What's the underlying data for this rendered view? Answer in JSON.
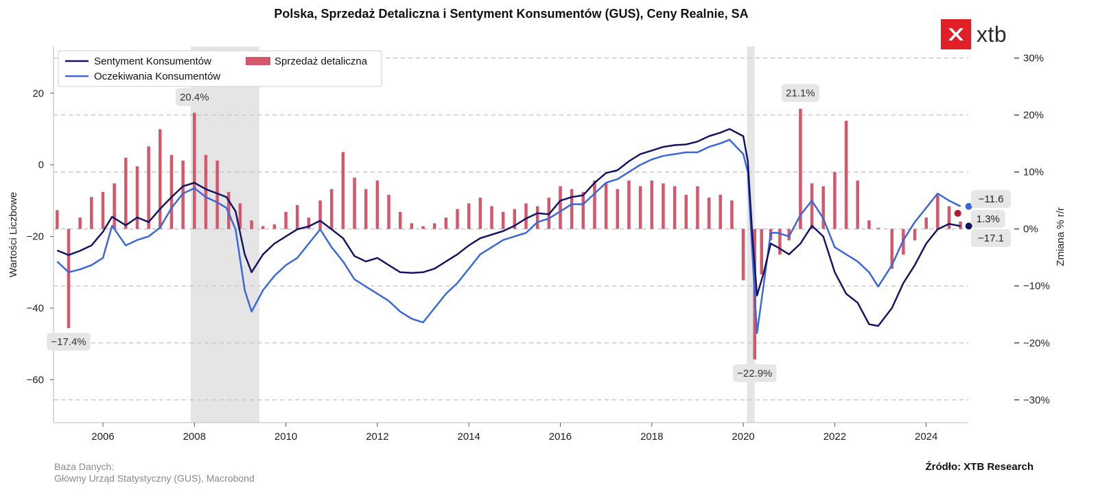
{
  "title": "Polska, Sprzedaż Detaliczna i Sentyment Konsumentów (GUS), Ceny Realnie, SA",
  "logo": {
    "text": "xtb",
    "icon": "xtb-x-icon",
    "color": "#e11f26"
  },
  "footer": {
    "db_label": "Baza Danych:",
    "db_value": "Główny Urząd Statystyczny (GUS), Macrobond",
    "source": "Źródło: XTB Research"
  },
  "chart_data": {
    "type": "line",
    "x_range": [
      2004.92,
      2024.92
    ],
    "x_ticks": [
      "2006",
      "2008",
      "2010",
      "2012",
      "2014",
      "2016",
      "2018",
      "2020",
      "2022",
      "2024"
    ],
    "left_axis": {
      "label": "Wartości Liczbowe",
      "range": [
        -72,
        33
      ],
      "ticks": [
        -60,
        -40,
        -20,
        0,
        20
      ]
    },
    "right_axis": {
      "label": "Zmiana % r/r",
      "range": [
        -34,
        32
      ],
      "ticks": [
        -30,
        -20,
        -10,
        0,
        10,
        20,
        30
      ],
      "tick_format": "%"
    },
    "right_gridlines": [
      30,
      20,
      10,
      0,
      -10,
      -20,
      -30
    ],
    "shaded_periods": [
      [
        2007.92,
        2009.42
      ],
      [
        2020.08,
        2020.25
      ]
    ],
    "legend": {
      "position": "top-left",
      "items": [
        {
          "name": "Sentyment Konsumentów",
          "type": "line",
          "color": "#141466"
        },
        {
          "name": "Oczekiwania Konsumentów",
          "type": "line",
          "color": "#3a66de"
        },
        {
          "name": "Sprzedaż detaliczna",
          "type": "bar",
          "color": "#d5576c"
        }
      ]
    },
    "series": [
      {
        "name": "Sentyment Konsumentów",
        "axis": "left",
        "color": "#141466",
        "points": [
          [
            2005.0,
            -23.9
          ],
          [
            2005.25,
            -25.2
          ],
          [
            2005.5,
            -24.0
          ],
          [
            2005.75,
            -22.5
          ],
          [
            2006.0,
            -18.7
          ],
          [
            2006.2,
            -14.5
          ],
          [
            2006.5,
            -16.9
          ],
          [
            2006.75,
            -14.7
          ],
          [
            2007.0,
            -16.0
          ],
          [
            2007.25,
            -12.3
          ],
          [
            2007.5,
            -9.0
          ],
          [
            2007.75,
            -6.0
          ],
          [
            2008.0,
            -5.0
          ],
          [
            2008.25,
            -6.8
          ],
          [
            2008.5,
            -8.0
          ],
          [
            2008.7,
            -9.0
          ],
          [
            2008.9,
            -13.0
          ],
          [
            2009.1,
            -25.0
          ],
          [
            2009.25,
            -30.0
          ],
          [
            2009.5,
            -25.0
          ],
          [
            2009.75,
            -22.0
          ],
          [
            2010.0,
            -20.0
          ],
          [
            2010.25,
            -18.0
          ],
          [
            2010.5,
            -17.2
          ],
          [
            2010.75,
            -15.6
          ],
          [
            2011.0,
            -18.0
          ],
          [
            2011.25,
            -20.5
          ],
          [
            2011.5,
            -25.5
          ],
          [
            2011.75,
            -27.0
          ],
          [
            2012.0,
            -26.0
          ],
          [
            2012.25,
            -28.0
          ],
          [
            2012.5,
            -30.0
          ],
          [
            2012.75,
            -30.2
          ],
          [
            2013.0,
            -30.0
          ],
          [
            2013.25,
            -29.0
          ],
          [
            2013.5,
            -27.0
          ],
          [
            2013.75,
            -25.0
          ],
          [
            2014.0,
            -22.5
          ],
          [
            2014.25,
            -20.5
          ],
          [
            2014.5,
            -19.5
          ],
          [
            2014.75,
            -18.5
          ],
          [
            2015.0,
            -17.0
          ],
          [
            2015.25,
            -15.0
          ],
          [
            2015.5,
            -13.5
          ],
          [
            2015.75,
            -13.8
          ],
          [
            2016.0,
            -10.0
          ],
          [
            2016.25,
            -9.0
          ],
          [
            2016.5,
            -8.5
          ],
          [
            2016.75,
            -5.0
          ],
          [
            2017.0,
            -2.3
          ],
          [
            2017.25,
            -1.5
          ],
          [
            2017.5,
            1.0
          ],
          [
            2017.75,
            3.0
          ],
          [
            2018.0,
            4.0
          ],
          [
            2018.25,
            5.0
          ],
          [
            2018.5,
            5.5
          ],
          [
            2018.75,
            5.7
          ],
          [
            2019.0,
            6.5
          ],
          [
            2019.25,
            8.0
          ],
          [
            2019.5,
            9.0
          ],
          [
            2019.7,
            10.0
          ],
          [
            2020.0,
            8.0
          ],
          [
            2020.1,
            1.0
          ],
          [
            2020.2,
            -20.0
          ],
          [
            2020.3,
            -36.5
          ],
          [
            2020.45,
            -30.0
          ],
          [
            2020.6,
            -22.0
          ],
          [
            2020.75,
            -23.0
          ],
          [
            2021.0,
            -25.0
          ],
          [
            2021.25,
            -22.0
          ],
          [
            2021.5,
            -17.0
          ],
          [
            2021.75,
            -20.0
          ],
          [
            2022.0,
            -30.0
          ],
          [
            2022.25,
            -36.0
          ],
          [
            2022.5,
            -38.5
          ],
          [
            2022.75,
            -44.5
          ],
          [
            2022.95,
            -45.0
          ],
          [
            2023.25,
            -40.0
          ],
          [
            2023.5,
            -33.0
          ],
          [
            2023.75,
            -28.0
          ],
          [
            2024.0,
            -22.0
          ],
          [
            2024.25,
            -18.0
          ],
          [
            2024.5,
            -16.5
          ],
          [
            2024.75,
            -17.1
          ]
        ]
      },
      {
        "name": "Oczekiwania Konsumentów",
        "axis": "left",
        "color": "#3a66de",
        "points": [
          [
            2005.0,
            -27.0
          ],
          [
            2005.25,
            -30.0
          ],
          [
            2005.5,
            -29.2
          ],
          [
            2005.75,
            -28.0
          ],
          [
            2006.0,
            -26.0
          ],
          [
            2006.2,
            -17.0
          ],
          [
            2006.5,
            -22.5
          ],
          [
            2006.75,
            -21.0
          ],
          [
            2007.0,
            -20.0
          ],
          [
            2007.25,
            -17.5
          ],
          [
            2007.5,
            -12.0
          ],
          [
            2007.75,
            -8.0
          ],
          [
            2008.0,
            -6.5
          ],
          [
            2008.25,
            -9.0
          ],
          [
            2008.5,
            -10.5
          ],
          [
            2008.7,
            -12.0
          ],
          [
            2008.9,
            -18.0
          ],
          [
            2009.1,
            -35.0
          ],
          [
            2009.25,
            -41.0
          ],
          [
            2009.5,
            -35.0
          ],
          [
            2009.75,
            -31.0
          ],
          [
            2010.0,
            -28.0
          ],
          [
            2010.25,
            -26.0
          ],
          [
            2010.5,
            -22.0
          ],
          [
            2010.75,
            -18.0
          ],
          [
            2011.0,
            -23.0
          ],
          [
            2011.25,
            -27.0
          ],
          [
            2011.5,
            -32.0
          ],
          [
            2011.75,
            -34.0
          ],
          [
            2012.0,
            -36.0
          ],
          [
            2012.25,
            -38.0
          ],
          [
            2012.5,
            -41.0
          ],
          [
            2012.75,
            -43.0
          ],
          [
            2013.0,
            -44.0
          ],
          [
            2013.25,
            -40.0
          ],
          [
            2013.5,
            -36.0
          ],
          [
            2013.75,
            -33.0
          ],
          [
            2014.0,
            -29.0
          ],
          [
            2014.25,
            -25.0
          ],
          [
            2014.5,
            -23.0
          ],
          [
            2014.75,
            -21.0
          ],
          [
            2015.0,
            -20.0
          ],
          [
            2015.25,
            -19.0
          ],
          [
            2015.5,
            -16.0
          ],
          [
            2015.75,
            -15.0
          ],
          [
            2016.0,
            -13.0
          ],
          [
            2016.25,
            -11.0
          ],
          [
            2016.5,
            -11.0
          ],
          [
            2016.75,
            -8.0
          ],
          [
            2017.0,
            -5.0
          ],
          [
            2017.25,
            -4.0
          ],
          [
            2017.5,
            -2.0
          ],
          [
            2017.75,
            0.0
          ],
          [
            2018.0,
            1.5
          ],
          [
            2018.25,
            2.5
          ],
          [
            2018.5,
            3.0
          ],
          [
            2018.75,
            3.5
          ],
          [
            2019.0,
            3.5
          ],
          [
            2019.25,
            5.0
          ],
          [
            2019.5,
            6.0
          ],
          [
            2019.7,
            7.0
          ],
          [
            2020.0,
            3.0
          ],
          [
            2020.1,
            -2.0
          ],
          [
            2020.2,
            -25.0
          ],
          [
            2020.3,
            -47.0
          ],
          [
            2020.45,
            -33.0
          ],
          [
            2020.6,
            -19.0
          ],
          [
            2020.75,
            -19.0
          ],
          [
            2021.0,
            -20.0
          ],
          [
            2021.25,
            -14.0
          ],
          [
            2021.5,
            -10.0
          ],
          [
            2021.75,
            -15.0
          ],
          [
            2022.0,
            -23.0
          ],
          [
            2022.25,
            -25.0
          ],
          [
            2022.5,
            -27.0
          ],
          [
            2022.75,
            -30.0
          ],
          [
            2022.95,
            -34.0
          ],
          [
            2023.25,
            -28.0
          ],
          [
            2023.5,
            -21.0
          ],
          [
            2023.75,
            -16.0
          ],
          [
            2024.0,
            -12.0
          ],
          [
            2024.25,
            -8.0
          ],
          [
            2024.5,
            -10.0
          ],
          [
            2024.75,
            -11.6
          ]
        ]
      },
      {
        "name": "Sprzedaż detaliczna",
        "axis": "right",
        "type": "bar",
        "color": "#d5576c",
        "points": [
          [
            2005.0,
            3.3
          ],
          [
            2005.25,
            -17.4
          ],
          [
            2005.5,
            2.0
          ],
          [
            2005.75,
            5.6
          ],
          [
            2006.0,
            6.5
          ],
          [
            2006.25,
            8.0
          ],
          [
            2006.5,
            12.5
          ],
          [
            2006.75,
            11.0
          ],
          [
            2007.0,
            14.5
          ],
          [
            2007.25,
            17.5
          ],
          [
            2007.5,
            13.0
          ],
          [
            2007.75,
            12.0
          ],
          [
            2008.0,
            20.4
          ],
          [
            2008.25,
            13.0
          ],
          [
            2008.5,
            12.0
          ],
          [
            2008.75,
            6.5
          ],
          [
            2009.0,
            4.5
          ],
          [
            2009.25,
            1.5
          ],
          [
            2009.5,
            0.5
          ],
          [
            2009.75,
            0.8
          ],
          [
            2010.0,
            3.0
          ],
          [
            2010.25,
            4.2
          ],
          [
            2010.5,
            2.0
          ],
          [
            2010.75,
            5.0
          ],
          [
            2011.0,
            7.0
          ],
          [
            2011.25,
            13.5
          ],
          [
            2011.5,
            9.0
          ],
          [
            2011.75,
            7.0
          ],
          [
            2012.0,
            8.5
          ],
          [
            2012.25,
            6.0
          ],
          [
            2012.5,
            3.0
          ],
          [
            2012.75,
            1.0
          ],
          [
            2013.0,
            0.5
          ],
          [
            2013.25,
            1.0
          ],
          [
            2013.5,
            2.0
          ],
          [
            2013.75,
            3.5
          ],
          [
            2014.0,
            4.5
          ],
          [
            2014.25,
            5.5
          ],
          [
            2014.5,
            4.0
          ],
          [
            2014.75,
            3.0
          ],
          [
            2015.0,
            3.5
          ],
          [
            2015.25,
            4.5
          ],
          [
            2015.5,
            4.0
          ],
          [
            2015.75,
            5.5
          ],
          [
            2016.0,
            7.5
          ],
          [
            2016.25,
            7.0
          ],
          [
            2016.5,
            6.5
          ],
          [
            2016.75,
            8.5
          ],
          [
            2017.0,
            8.0
          ],
          [
            2017.25,
            7.0
          ],
          [
            2017.5,
            8.5
          ],
          [
            2017.75,
            7.5
          ],
          [
            2018.0,
            8.5
          ],
          [
            2018.25,
            8.0
          ],
          [
            2018.5,
            7.5
          ],
          [
            2018.75,
            6.0
          ],
          [
            2019.0,
            7.5
          ],
          [
            2019.25,
            5.5
          ],
          [
            2019.5,
            6.0
          ],
          [
            2019.75,
            5.0
          ],
          [
            2020.0,
            -9.0
          ],
          [
            2020.25,
            -22.9
          ],
          [
            2020.4,
            -8.0
          ],
          [
            2020.6,
            -2.0
          ],
          [
            2020.8,
            -4.5
          ],
          [
            2021.0,
            -2.0
          ],
          [
            2021.25,
            21.1
          ],
          [
            2021.5,
            8.0
          ],
          [
            2021.75,
            7.5
          ],
          [
            2022.0,
            10.0
          ],
          [
            2022.25,
            19.0
          ],
          [
            2022.5,
            8.5
          ],
          [
            2022.75,
            1.5
          ],
          [
            2022.95,
            0.2
          ],
          [
            2023.25,
            -7.0
          ],
          [
            2023.5,
            -4.5
          ],
          [
            2023.75,
            -2.0
          ],
          [
            2024.0,
            2.0
          ],
          [
            2024.25,
            6.0
          ],
          [
            2024.5,
            4.0
          ],
          [
            2024.75,
            1.3
          ]
        ]
      }
    ],
    "annotations": [
      {
        "label": "20.4%",
        "x": 2008.0,
        "y": 20.4,
        "axis": "right",
        "placement": "above"
      },
      {
        "label": "-17.4%",
        "x": 2005.25,
        "y": -17.4,
        "axis": "right",
        "placement": "below"
      },
      {
        "label": "21.1%",
        "x": 2021.25,
        "y": 21.1,
        "axis": "right",
        "placement": "above"
      },
      {
        "label": "-22.9%",
        "x": 2020.25,
        "y": -22.9,
        "axis": "right",
        "placement": "below"
      }
    ],
    "end_labels": [
      {
        "label": "-11.6",
        "series": "Oczekiwania Konsumentów",
        "color": "#3a66de"
      },
      {
        "label": "1.3%",
        "series": "Sprzedaż detaliczna",
        "color": "#b31b34"
      },
      {
        "label": "-17.1",
        "series": "Sentyment Konsumentów",
        "color": "#141466"
      }
    ]
  }
}
